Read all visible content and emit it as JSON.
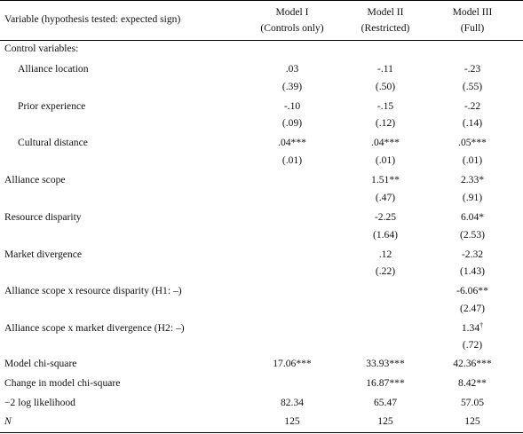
{
  "header": {
    "variable_col": "Variable (hypothesis tested: expected sign)",
    "models": [
      {
        "name": "Model I",
        "sub": "(Controls only)"
      },
      {
        "name": "Model II",
        "sub": "(Restricted)"
      },
      {
        "name": "Model III",
        "sub": "(Full)"
      }
    ]
  },
  "sections": {
    "controls": "Control variables:"
  },
  "rows": {
    "alliance_location": {
      "label": "Alliance location",
      "m1": ".03",
      "m1_se": "(.39)",
      "m2": "-.11",
      "m2_se": "(.50)",
      "m3": "-.23",
      "m3_se": "(.55)"
    },
    "prior_experience": {
      "label": "Prior experience",
      "m1": "-.10",
      "m1_se": "(.09)",
      "m2": "-.15",
      "m2_se": "(.12)",
      "m3": "-.22",
      "m3_se": "(.14)"
    },
    "cultural_distance": {
      "label": "Cultural distance",
      "m1": ".04***",
      "m1_se": "(.01)",
      "m2": ".04***",
      "m2_se": "(.01)",
      "m3": ".05***",
      "m3_se": "(.01)"
    },
    "alliance_scope": {
      "label": "Alliance scope",
      "m2": "1.51**",
      "m2_se": "(.47)",
      "m3": "2.33*",
      "m3_se": "(.91)"
    },
    "resource_disparity": {
      "label": "Resource disparity",
      "m2": "-2.25",
      "m2_se": "(1.64)",
      "m3": "6.04*",
      "m3_se": "(2.53)"
    },
    "market_divergence": {
      "label": "Market divergence",
      "m2": ".12",
      "m2_se": "(.22)",
      "m3": "-2.32",
      "m3_se": "(1.43)"
    },
    "h1": {
      "label": "Alliance scope x resource disparity (H1: –)",
      "m3": "-6.06**",
      "m3_se": "(2.47)"
    },
    "h2": {
      "label": "Alliance scope x market divergence (H2: –)",
      "m3": "1.34",
      "m3_sup": "†",
      "m3_se": "(.72)"
    },
    "chi_square": {
      "label": "Model chi-square",
      "m1": "17.06***",
      "m2": "33.93***",
      "m3": "42.36***"
    },
    "chi_change": {
      "label": "Change in model chi-square",
      "m2": "16.87***",
      "m3": "8.42**"
    },
    "loglik": {
      "label": "−2 log likelihood",
      "m1": "82.34",
      "m2": "65.47",
      "m3": "57.05"
    },
    "n": {
      "label": "N",
      "m1": "125",
      "m2": "125",
      "m3": "125"
    }
  }
}
